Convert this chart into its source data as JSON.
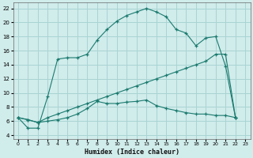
{
  "xlabel": "Humidex (Indice chaleur)",
  "background_color": "#d0eceb",
  "grid_color": "#a8d4d2",
  "line_color": "#1a7a6e",
  "xlim": [
    -0.5,
    23.5
  ],
  "ylim": [
    3.5,
    22.8
  ],
  "yticks": [
    4,
    6,
    8,
    10,
    12,
    14,
    16,
    18,
    20,
    22
  ],
  "xticks": [
    0,
    1,
    2,
    3,
    4,
    5,
    6,
    7,
    8,
    9,
    10,
    11,
    12,
    13,
    14,
    15,
    16,
    17,
    18,
    19,
    20,
    21,
    22,
    23
  ],
  "line1_x": [
    0,
    1,
    2,
    3,
    4,
    5,
    6,
    7,
    8,
    9,
    10,
    11,
    12,
    13,
    14,
    15,
    16,
    17,
    18,
    19,
    20,
    21,
    22
  ],
  "line1_y": [
    6.5,
    5.0,
    5.0,
    9.5,
    14.8,
    15.0,
    15.0,
    15.5,
    17.5,
    19.0,
    20.2,
    21.0,
    21.5,
    22.0,
    21.5,
    20.8,
    19.0,
    18.5,
    16.7,
    17.8,
    18.0,
    13.8,
    6.5
  ],
  "line2_x": [
    0,
    1,
    2,
    3,
    4,
    5,
    6,
    7,
    8,
    9,
    10,
    11,
    12,
    13,
    14,
    15,
    16,
    17,
    18,
    19,
    20,
    21,
    22
  ],
  "line2_y": [
    6.5,
    6.2,
    5.8,
    6.0,
    6.2,
    6.5,
    7.0,
    7.8,
    8.8,
    8.5,
    8.5,
    8.7,
    8.8,
    9.0,
    8.2,
    7.8,
    7.5,
    7.2,
    7.0,
    7.0,
    6.8,
    6.8,
    6.5
  ],
  "line3_x": [
    0,
    1,
    2,
    3,
    4,
    5,
    6,
    7,
    8,
    9,
    10,
    11,
    12,
    13,
    14,
    15,
    16,
    17,
    18,
    19,
    20,
    21,
    22
  ],
  "line3_y": [
    6.5,
    6.2,
    5.8,
    6.5,
    7.0,
    7.5,
    8.0,
    8.5,
    9.0,
    9.5,
    10.0,
    10.5,
    11.0,
    11.5,
    12.0,
    12.5,
    13.0,
    13.5,
    14.0,
    14.5,
    15.5,
    15.5,
    6.5
  ]
}
